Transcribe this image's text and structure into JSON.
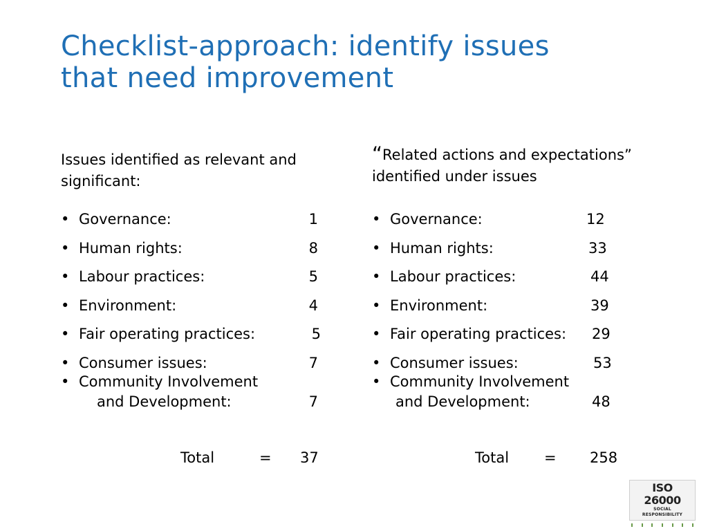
{
  "title": {
    "line1": "Checklist-approach: identify issues",
    "line2": "that need improvement"
  },
  "left": {
    "heading": "Issues identified as relevant and significant:",
    "items": [
      {
        "label": "Governance:",
        "value": "1"
      },
      {
        "label": "Human rights:",
        "value": "8"
      },
      {
        "label": "Labour practices:",
        "value": "5"
      },
      {
        "label": "Environment:",
        "value": "4"
      },
      {
        "label": "Fair operating practices:",
        "value": "5"
      },
      {
        "label": "Consumer issues:",
        "value": "7"
      }
    ],
    "last_item": {
      "label": "Community Involvement",
      "sub_label": "and Development:",
      "value": "7"
    },
    "total": {
      "label": "Total",
      "equals": "=",
      "value": "37"
    }
  },
  "right": {
    "quote_open": "“",
    "heading_quoted": "Related actions and expectations”",
    "heading_line2": "identified under issues",
    "items": [
      {
        "label": "Governance:",
        "value": "12"
      },
      {
        "label": "Human rights:",
        "value": "33"
      },
      {
        "label": "Labour practices:",
        "value": "44"
      },
      {
        "label": "Environment:",
        "value": "39"
      },
      {
        "label": "Fair operating practices:",
        "value": "29"
      },
      {
        "label": "Consumer issues:",
        "value": "53"
      }
    ],
    "last_item": {
      "label": "Community Involvement",
      "sub_label": "and Development:",
      "value": "48"
    },
    "total": {
      "label": "Total",
      "equals": "=",
      "value": "258"
    }
  },
  "bullet": "•",
  "logo": {
    "main": "ISO 26000",
    "sub": "SOCIAL RESPONSIBILITY"
  },
  "colors": {
    "title": "#1f6fb5",
    "logo_stripe": "#6a9b4a"
  }
}
